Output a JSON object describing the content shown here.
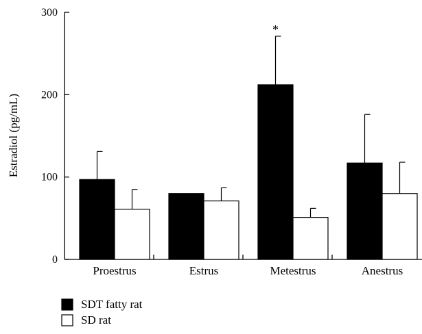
{
  "chart_data": {
    "type": "bar",
    "title": "",
    "xlabel": "",
    "ylabel": "Estradiol (pg/mL)",
    "ylim": [
      0,
      300
    ],
    "yticks": [
      0,
      100,
      200,
      300
    ],
    "categories": [
      "Proestrus",
      "Estrus",
      "Metestrus",
      "Anestrus"
    ],
    "series": [
      {
        "name": "SDT fatty rat",
        "color": "#000000",
        "values": [
          97,
          80,
          212,
          117
        ],
        "errors": [
          34,
          0,
          59,
          59
        ]
      },
      {
        "name": "SD rat",
        "color": "#ffffff",
        "values": [
          61,
          71,
          51,
          80
        ],
        "errors": [
          24,
          16,
          11,
          38
        ]
      }
    ],
    "annotations": [
      {
        "text": "*",
        "category": "Metestrus",
        "series": "SDT fatty rat"
      }
    ],
    "legend_position": "bottom-left",
    "grid": false
  }
}
